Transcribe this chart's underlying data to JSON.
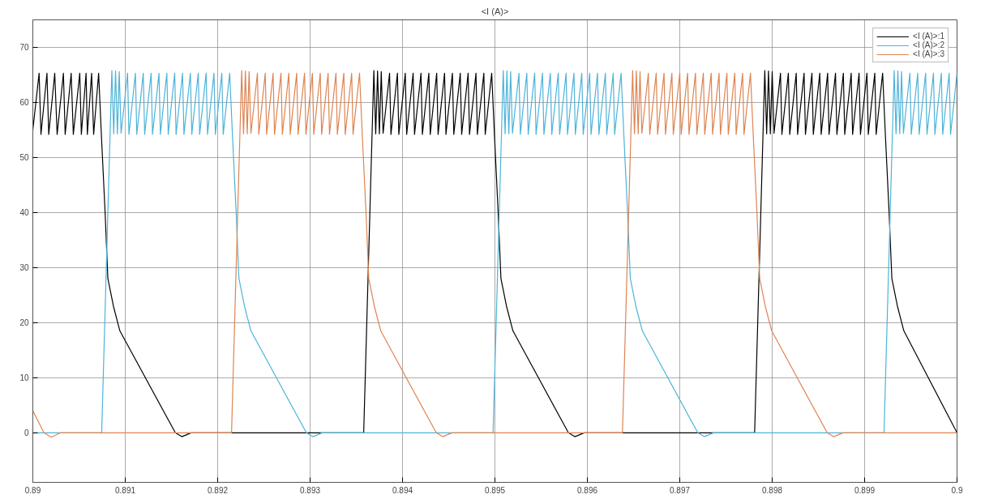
{
  "chart_data": {
    "type": "line",
    "title": "<I (A)>",
    "xlim": [
      0.89,
      0.9
    ],
    "xticks": [
      0.89,
      0.891,
      0.892,
      0.893,
      0.894,
      0.895,
      0.896,
      0.897,
      0.898,
      0.899,
      0.9
    ],
    "ylim": [
      -9,
      75
    ],
    "yticks": [
      0,
      10,
      20,
      30,
      40,
      50,
      60,
      70
    ],
    "grid": true,
    "legend": "top right",
    "line_style": "solid",
    "marker": "none",
    "series": [
      {
        "name": "<I (A)>:1",
        "color": "#000000",
        "x": [
          0.89,
          0.890068,
          0.890088,
          0.890153,
          0.890172,
          0.890237,
          0.890263,
          0.890331,
          0.89035,
          0.890415,
          0.890438,
          0.890508,
          0.890525,
          0.890576,
          0.89059,
          0.890636,
          0.890658,
          0.890712,
          0.890742,
          0.890782,
          0.890812,
          0.890872,
          0.890942,
          0.891542,
          0.891612,
          0.891712,
          0.89358,
          0.89369,
          0.89371,
          0.89373,
          0.89375,
          0.89377,
          0.89379,
          0.89386,
          0.893875,
          0.893945,
          0.89396,
          0.89403,
          0.894045,
          0.894115,
          0.89413,
          0.8942,
          0.894215,
          0.894285,
          0.8943,
          0.89437,
          0.894385,
          0.894455,
          0.89447,
          0.89454,
          0.894555,
          0.894625,
          0.89464,
          0.89471,
          0.894725,
          0.894795,
          0.89481,
          0.89488,
          0.894895,
          0.894965,
          0.894995,
          0.895035,
          0.895065,
          0.895125,
          0.895195,
          0.895795,
          0.895865,
          0.895965,
          0.89781,
          0.89792,
          0.89794,
          0.89796,
          0.89798,
          0.898,
          0.89802,
          0.89809,
          0.898105,
          0.898175,
          0.89819,
          0.89826,
          0.898275,
          0.898345,
          0.89836,
          0.89843,
          0.898445,
          0.898515,
          0.89853,
          0.8986,
          0.898615,
          0.898685,
          0.8987,
          0.89877,
          0.898785,
          0.898855,
          0.89887,
          0.89894,
          0.898955,
          0.899025,
          0.89904,
          0.89911,
          0.899125,
          0.899195,
          0.899225,
          0.899265,
          0.899295,
          0.899355,
          0.899425,
          0.9
        ],
        "values": [
          55,
          65.3,
          54.2,
          65.3,
          54.2,
          65.3,
          54.2,
          65.3,
          54.2,
          65.3,
          54.2,
          65.3,
          54.2,
          65.3,
          54.2,
          65.3,
          54.2,
          65.3,
          54,
          40,
          28,
          23,
          18.5,
          0,
          -0.7,
          0,
          0,
          65.8,
          54.3,
          65.7,
          54.3,
          65.6,
          54.4,
          65.3,
          54.2,
          65.3,
          54.2,
          65.3,
          54.2,
          65.3,
          54.2,
          65.3,
          54.2,
          65.3,
          54.2,
          65.3,
          54.2,
          65.3,
          54.2,
          65.3,
          54.2,
          65.3,
          54.2,
          65.3,
          54.2,
          65.3,
          54.2,
          65.3,
          54.2,
          65.3,
          54,
          40,
          28,
          23,
          18.5,
          0,
          -0.7,
          0,
          0,
          65.8,
          54.3,
          65.7,
          54.3,
          65.6,
          54.4,
          65.3,
          54.2,
          65.3,
          54.2,
          65.3,
          54.2,
          65.3,
          54.2,
          65.3,
          54.2,
          65.3,
          54.2,
          65.3,
          54.2,
          65.3,
          54.2,
          65.3,
          54.2,
          65.3,
          54.2,
          65.3,
          54.2,
          65.3,
          54.2,
          65.3,
          54.2,
          65.3,
          54,
          40,
          28,
          23,
          18.5,
          0
        ]
      },
      {
        "name": "<I (A)>:2",
        "color": "#4db3d9",
        "x": [
          0.89,
          0.890745,
          0.890855,
          0.890875,
          0.890895,
          0.890915,
          0.890935,
          0.890955,
          0.891025,
          0.89104,
          0.89111,
          0.891125,
          0.891195,
          0.89121,
          0.89128,
          0.891295,
          0.891365,
          0.89138,
          0.89145,
          0.891465,
          0.891535,
          0.89155,
          0.89162,
          0.891635,
          0.891705,
          0.89172,
          0.89179,
          0.891805,
          0.891875,
          0.89189,
          0.89196,
          0.891975,
          0.892045,
          0.89206,
          0.89213,
          0.89216,
          0.8922,
          0.89223,
          0.89229,
          0.89236,
          0.89296,
          0.89303,
          0.89313,
          0.89498,
          0.89509,
          0.89511,
          0.89513,
          0.89515,
          0.89517,
          0.89519,
          0.89526,
          0.895275,
          0.895345,
          0.89536,
          0.89543,
          0.895445,
          0.895515,
          0.89553,
          0.8956,
          0.895615,
          0.895685,
          0.8957,
          0.89577,
          0.895785,
          0.895855,
          0.89587,
          0.89594,
          0.895955,
          0.896025,
          0.89604,
          0.89611,
          0.896125,
          0.896195,
          0.89621,
          0.89628,
          0.896295,
          0.896365,
          0.896395,
          0.896435,
          0.896465,
          0.896525,
          0.896595,
          0.897195,
          0.897265,
          0.897365,
          0.89921,
          0.89932,
          0.89934,
          0.89936,
          0.89938,
          0.8994,
          0.89942,
          0.89949,
          0.899505,
          0.899575,
          0.89959,
          0.89966,
          0.899675,
          0.899745,
          0.89976,
          0.89983,
          0.899845,
          0.899915,
          0.89993,
          0.9
        ],
        "values": [
          0,
          0,
          65.8,
          54.3,
          65.7,
          54.3,
          65.6,
          54.4,
          65.3,
          54.2,
          65.3,
          54.2,
          65.3,
          54.2,
          65.3,
          54.2,
          65.3,
          54.2,
          65.3,
          54.2,
          65.3,
          54.2,
          65.3,
          54.2,
          65.3,
          54.2,
          65.3,
          54.2,
          65.3,
          54.2,
          65.3,
          54.2,
          65.3,
          54.2,
          65.3,
          54,
          40,
          28,
          23,
          18.5,
          0,
          -0.7,
          0,
          0,
          65.8,
          54.3,
          65.7,
          54.3,
          65.6,
          54.4,
          65.3,
          54.2,
          65.3,
          54.2,
          65.3,
          54.2,
          65.3,
          54.2,
          65.3,
          54.2,
          65.3,
          54.2,
          65.3,
          54.2,
          65.3,
          54.2,
          65.3,
          54.2,
          65.3,
          54.2,
          65.3,
          54.2,
          65.3,
          54.2,
          65.3,
          54.2,
          65.3,
          54,
          40,
          28,
          23,
          18.5,
          0,
          -0.7,
          0,
          0,
          65.8,
          54.3,
          65.7,
          54.3,
          65.6,
          54.4,
          65.3,
          54.2,
          65.3,
          54.2,
          65.3,
          54.2,
          65.3,
          54.2,
          65.3,
          54.2,
          65.3,
          54.2,
          65.3
        ]
      },
      {
        "name": "<I (A)>:3",
        "color": "#dd8452",
        "x": [
          0.89,
          0.89012,
          0.8902,
          0.8903,
          0.89215,
          0.89226,
          0.89228,
          0.8923,
          0.89232,
          0.89234,
          0.89236,
          0.89243,
          0.892445,
          0.892515,
          0.89253,
          0.8926,
          0.892615,
          0.892685,
          0.8927,
          0.89277,
          0.892785,
          0.892855,
          0.89287,
          0.89294,
          0.892955,
          0.893025,
          0.89304,
          0.89311,
          0.893125,
          0.893195,
          0.89321,
          0.89328,
          0.893295,
          0.893365,
          0.89338,
          0.89345,
          0.893465,
          0.893535,
          0.893565,
          0.893605,
          0.893635,
          0.893695,
          0.893765,
          0.894365,
          0.894435,
          0.894535,
          0.89638,
          0.89649,
          0.89651,
          0.89653,
          0.89655,
          0.89657,
          0.89659,
          0.89666,
          0.896675,
          0.896745,
          0.89676,
          0.89683,
          0.896845,
          0.896915,
          0.89693,
          0.897,
          0.897015,
          0.897085,
          0.8971,
          0.89717,
          0.897185,
          0.897255,
          0.89727,
          0.89734,
          0.897355,
          0.897425,
          0.89744,
          0.89751,
          0.897525,
          0.897595,
          0.89761,
          0.89768,
          0.897695,
          0.897765,
          0.897795,
          0.897835,
          0.897865,
          0.897925,
          0.897995,
          0.898595,
          0.898665,
          0.898765,
          0.9
        ],
        "values": [
          4,
          0,
          -0.8,
          0,
          0,
          65.8,
          54.3,
          65.7,
          54.3,
          65.6,
          54.4,
          65.3,
          54.2,
          65.3,
          54.2,
          65.3,
          54.2,
          65.3,
          54.2,
          65.3,
          54.2,
          65.3,
          54.2,
          65.3,
          54.2,
          65.3,
          54.2,
          65.3,
          54.2,
          65.3,
          54.2,
          65.3,
          54.2,
          65.3,
          54.2,
          65.3,
          54.2,
          65.3,
          54,
          40,
          28,
          23,
          18.5,
          0,
          -0.7,
          0,
          0,
          65.8,
          54.3,
          65.7,
          54.3,
          65.6,
          54.4,
          65.3,
          54.2,
          65.3,
          54.2,
          65.3,
          54.2,
          65.3,
          54.2,
          65.3,
          54.2,
          65.3,
          54.2,
          65.3,
          54.2,
          65.3,
          54.2,
          65.3,
          54.2,
          65.3,
          54.2,
          65.3,
          54.2,
          65.3,
          54.2,
          65.3,
          54.2,
          65.3,
          54,
          40,
          28,
          23,
          18.5,
          0,
          -0.7,
          0,
          0
        ]
      }
    ]
  }
}
